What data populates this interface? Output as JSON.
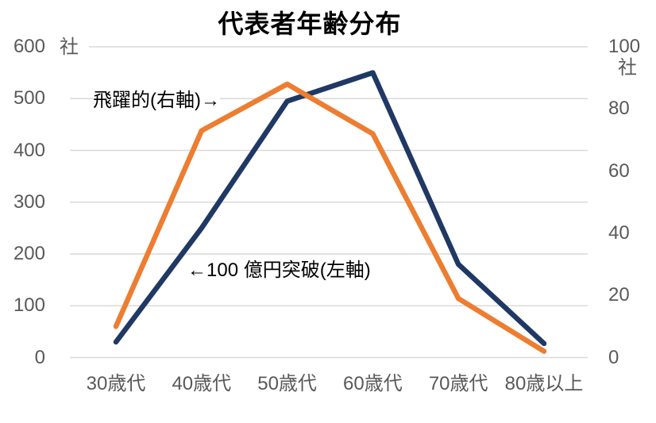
{
  "page": {
    "background": "#ffffff"
  },
  "chart_data": {
    "type": "line",
    "title": "代表者年齢分布",
    "categories": [
      "30歳代",
      "40歳代",
      "50歳代",
      "60歳代",
      "70歳代",
      "80歳以上"
    ],
    "series": [
      {
        "name": "100億円突破(左軸)",
        "axis": "left",
        "color": "#203864",
        "values": [
          30,
          250,
          495,
          550,
          180,
          27
        ]
      },
      {
        "name": "飛躍的(右軸)",
        "axis": "right",
        "color": "#ED7D31",
        "values": [
          10,
          73,
          88,
          72,
          19,
          2
        ]
      }
    ],
    "left_axis": {
      "unit": "社",
      "range": [
        0,
        600
      ],
      "ticks": [
        600,
        500,
        400,
        300,
        200,
        100,
        0
      ]
    },
    "right_axis": {
      "unit": "社",
      "range": [
        0,
        100
      ],
      "ticks": [
        100,
        80,
        60,
        40,
        20,
        0
      ]
    },
    "annotations": [
      {
        "text": "飛躍的(右軸)→",
        "points_to": "飛躍的(右軸)"
      },
      {
        "text": "←100 億円突破(左軸)",
        "points_to": "100億円突破(左軸)"
      }
    ],
    "grid": true,
    "legend_position": "none",
    "styles": {
      "grid_color": "#D9D9D9",
      "tick_color": "#595959",
      "title_color": "#000000",
      "annotation_color": "#000000",
      "line_width": 6.5
    }
  }
}
